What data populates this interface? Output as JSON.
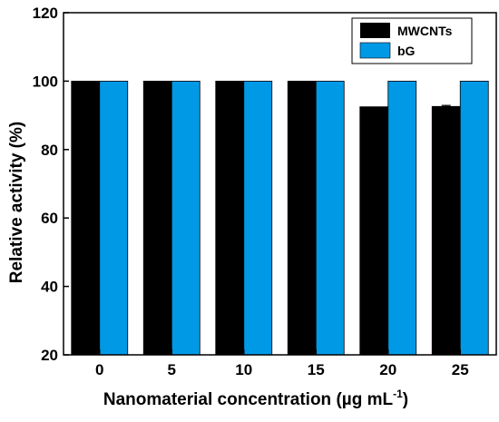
{
  "chart_data": {
    "type": "bar",
    "categories": [
      "0",
      "5",
      "10",
      "15",
      "20",
      "25"
    ],
    "series": [
      {
        "name": "MWCNTs",
        "values": [
          100,
          100,
          100,
          100,
          92.5,
          92.6
        ],
        "color": "#000000",
        "error": [
          0,
          0,
          0,
          0,
          0,
          0.3
        ]
      },
      {
        "name": "bG",
        "values": [
          100,
          100,
          100,
          100,
          100,
          100
        ],
        "color": "#0099e6",
        "error": [
          0,
          0,
          0,
          0,
          0,
          0
        ]
      }
    ],
    "title": "",
    "xlabel": "Nanomaterial concentration (µg mL",
    "xlabel_superscript": "-1",
    "xlabel_suffix": ")",
    "ylabel": "Relative activity (%)",
    "ylim": [
      20,
      120
    ],
    "yticks": [
      "20",
      "40",
      "60",
      "80",
      "100",
      "120"
    ],
    "grid": false,
    "legend_position": "top-right"
  }
}
